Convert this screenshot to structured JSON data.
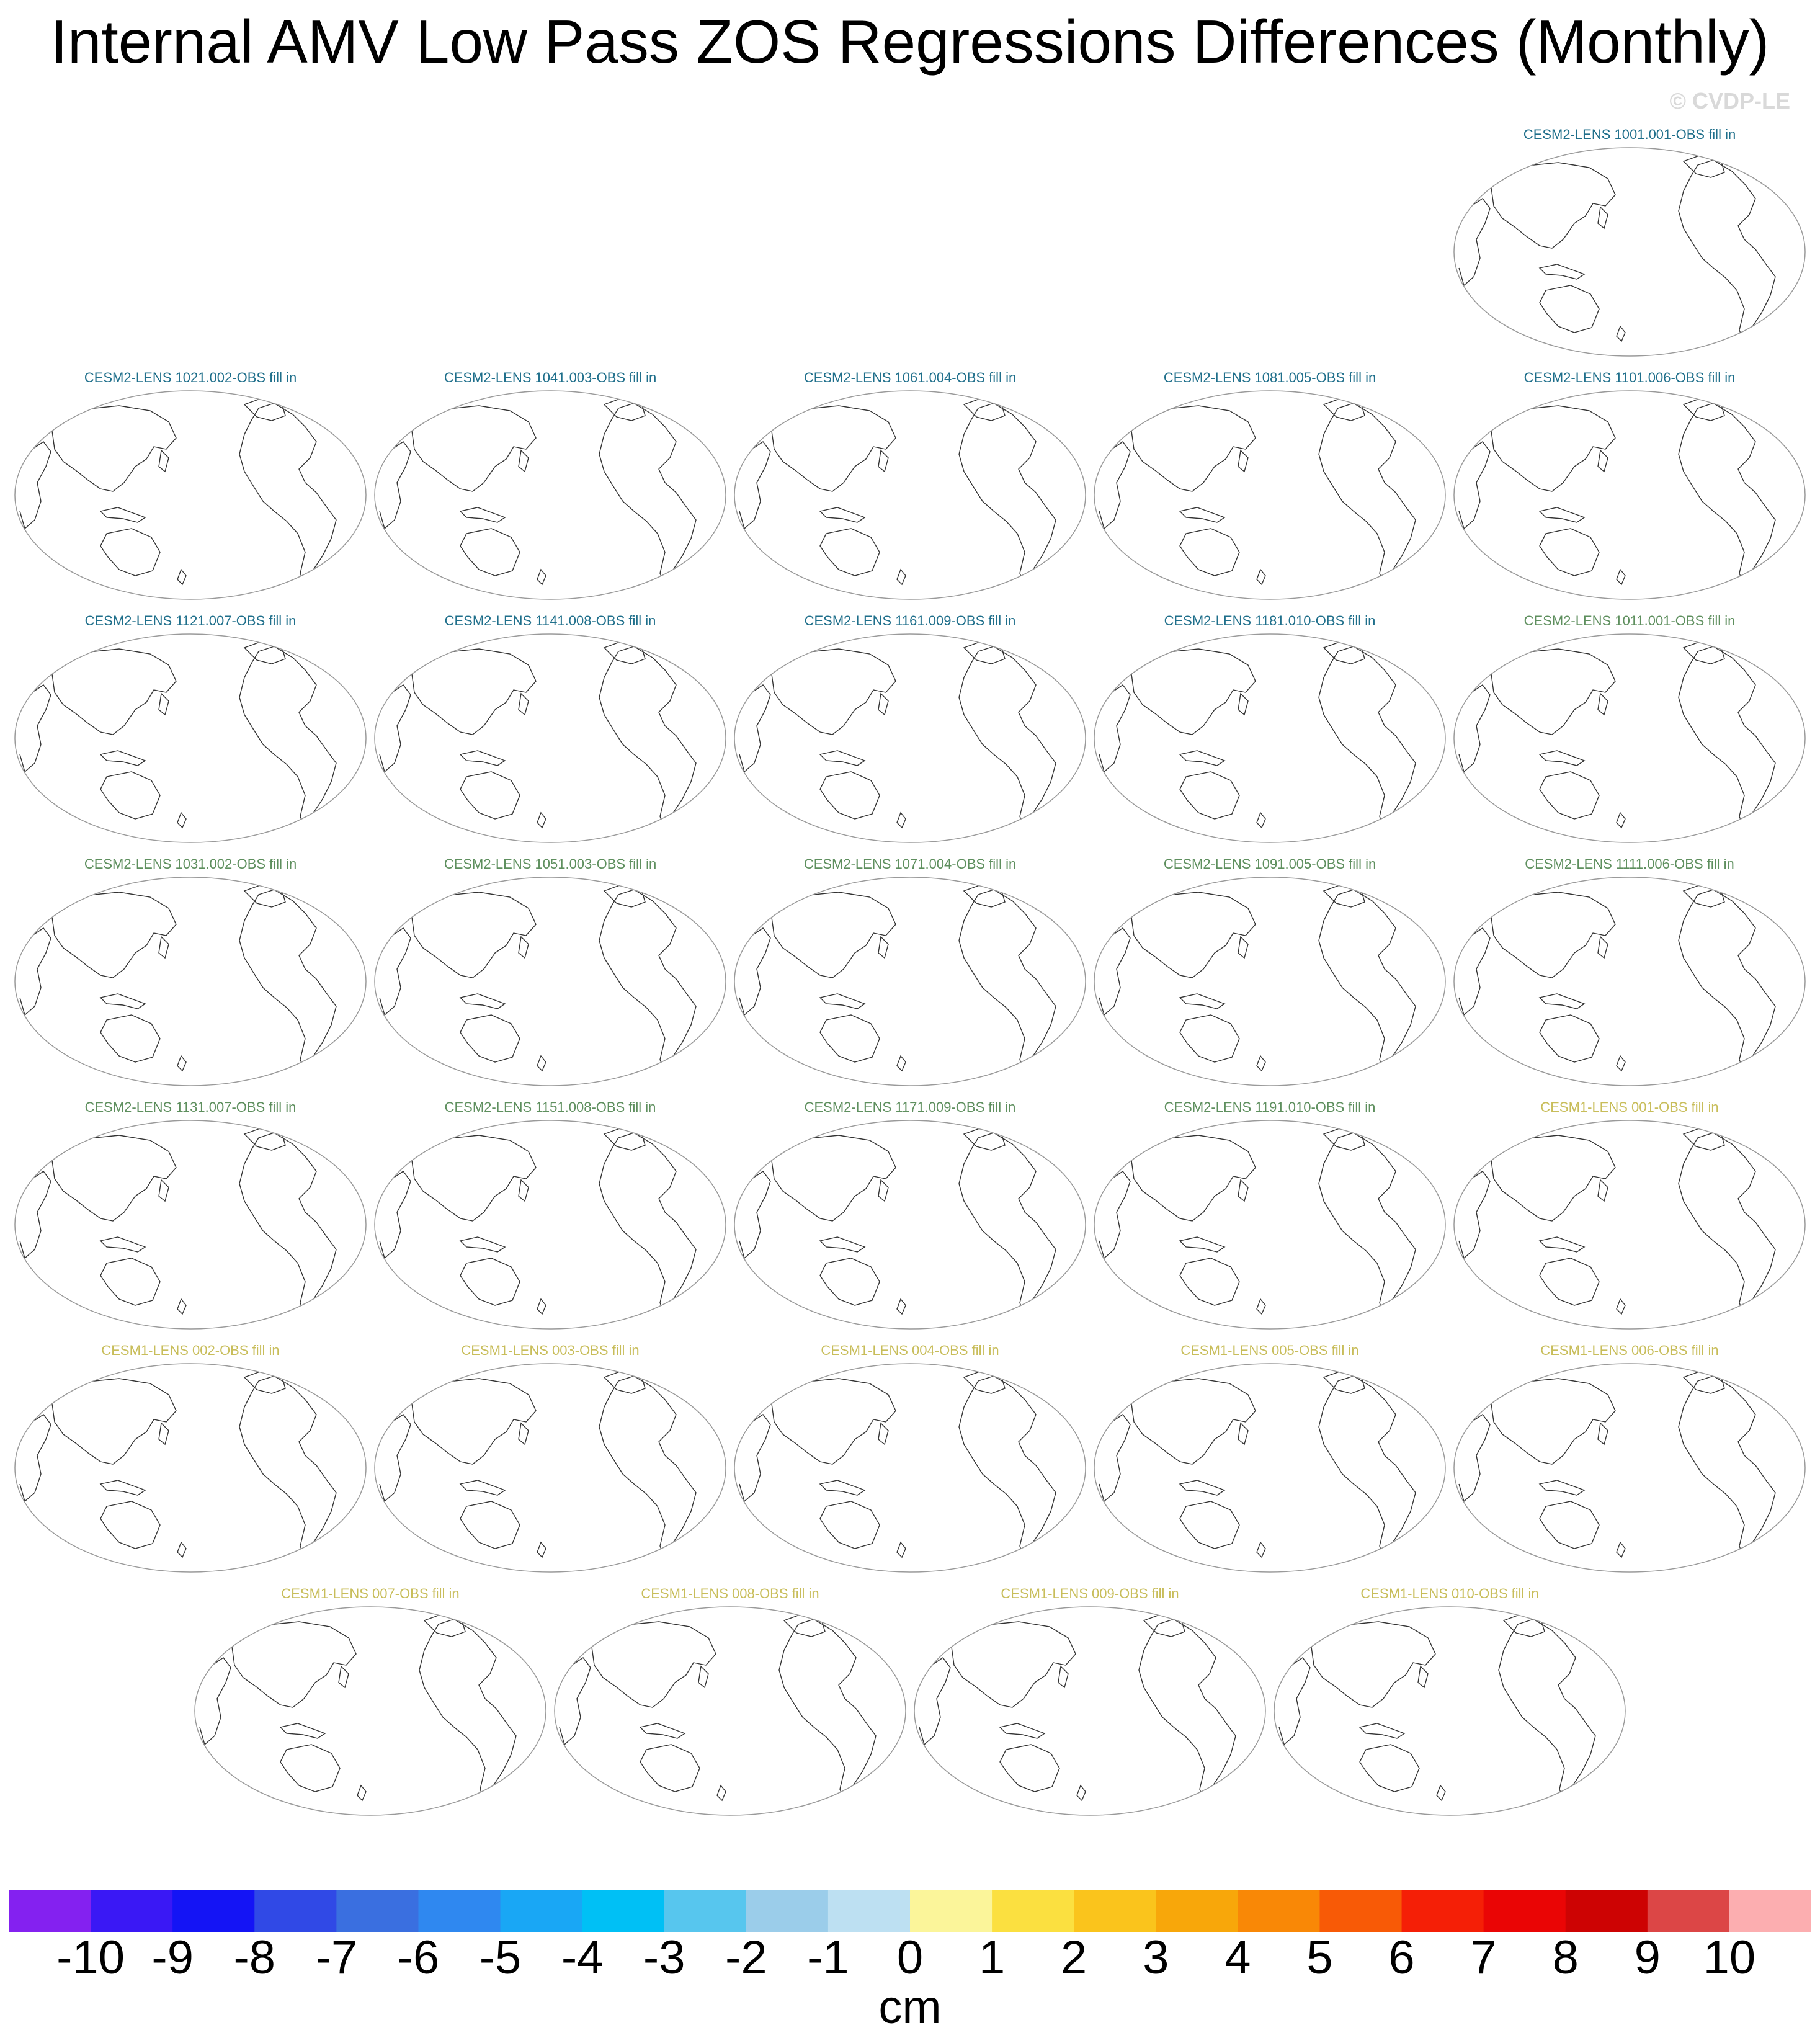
{
  "title": "Internal AMV Low Pass ZOS Regressions Differences (Monthly)",
  "watermark": "© CVDP-LE",
  "colors": {
    "cesm2_a": "#1f6f8b",
    "cesm2_b": "#5e8f5e",
    "cesm1": "#c8bd5a",
    "coast": "#333333",
    "outline": "#9a9a9a"
  },
  "panels": [
    {
      "title": "CESM2-LENS 1001.001-OBS fill in",
      "group": "cesm2_a"
    },
    {
      "title": "CESM2-LENS 1021.002-OBS fill in",
      "group": "cesm2_a"
    },
    {
      "title": "CESM2-LENS 1041.003-OBS fill in",
      "group": "cesm2_a"
    },
    {
      "title": "CESM2-LENS 1061.004-OBS fill in",
      "group": "cesm2_a"
    },
    {
      "title": "CESM2-LENS 1081.005-OBS fill in",
      "group": "cesm2_a"
    },
    {
      "title": "CESM2-LENS 1101.006-OBS fill in",
      "group": "cesm2_a"
    },
    {
      "title": "CESM2-LENS 1121.007-OBS fill in",
      "group": "cesm2_a"
    },
    {
      "title": "CESM2-LENS 1141.008-OBS fill in",
      "group": "cesm2_a"
    },
    {
      "title": "CESM2-LENS 1161.009-OBS fill in",
      "group": "cesm2_a"
    },
    {
      "title": "CESM2-LENS 1181.010-OBS fill in",
      "group": "cesm2_a"
    },
    {
      "title": "CESM2-LENS 1011.001-OBS fill in",
      "group": "cesm2_b"
    },
    {
      "title": "CESM2-LENS 1031.002-OBS fill in",
      "group": "cesm2_b"
    },
    {
      "title": "CESM2-LENS 1051.003-OBS fill in",
      "group": "cesm2_b"
    },
    {
      "title": "CESM2-LENS 1071.004-OBS fill in",
      "group": "cesm2_b"
    },
    {
      "title": "CESM2-LENS 1091.005-OBS fill in",
      "group": "cesm2_b"
    },
    {
      "title": "CESM2-LENS 1111.006-OBS fill in",
      "group": "cesm2_b"
    },
    {
      "title": "CESM2-LENS 1131.007-OBS fill in",
      "group": "cesm2_b"
    },
    {
      "title": "CESM2-LENS 1151.008-OBS fill in",
      "group": "cesm2_b"
    },
    {
      "title": "CESM2-LENS 1171.009-OBS fill in",
      "group": "cesm2_b"
    },
    {
      "title": "CESM2-LENS 1191.010-OBS fill in",
      "group": "cesm2_b"
    },
    {
      "title": "CESM1-LENS 001-OBS fill in",
      "group": "cesm1"
    },
    {
      "title": "CESM1-LENS 002-OBS fill in",
      "group": "cesm1"
    },
    {
      "title": "CESM1-LENS 003-OBS fill in",
      "group": "cesm1"
    },
    {
      "title": "CESM1-LENS 004-OBS fill in",
      "group": "cesm1"
    },
    {
      "title": "CESM1-LENS 005-OBS fill in",
      "group": "cesm1"
    },
    {
      "title": "CESM1-LENS 006-OBS fill in",
      "group": "cesm1"
    },
    {
      "title": "CESM1-LENS 007-OBS fill in",
      "group": "cesm1"
    },
    {
      "title": "CESM1-LENS 008-OBS fill in",
      "group": "cesm1"
    },
    {
      "title": "CESM1-LENS 009-OBS fill in",
      "group": "cesm1"
    },
    {
      "title": "CESM1-LENS 010-OBS fill in",
      "group": "cesm1"
    }
  ],
  "colorbar": {
    "units": "cm",
    "labels": [
      "-10",
      "-9",
      "-8",
      "-7",
      "-6",
      "-5",
      "-4",
      "-3",
      "-2",
      "-1",
      "0",
      "1",
      "2",
      "3",
      "4",
      "5",
      "6",
      "7",
      "8",
      "9",
      "10"
    ],
    "colors": [
      "#8421f0",
      "#3a18f5",
      "#1414f5",
      "#3049e6",
      "#3a6fe0",
      "#2f88f0",
      "#19a7f5",
      "#00c0f5",
      "#57c6ee",
      "#9bcdea",
      "#bde0f2",
      "#fbf59a",
      "#fbe040",
      "#fac41c",
      "#f8a70a",
      "#f98806",
      "#f85a06",
      "#f51f06",
      "#ea0505",
      "#cd0303",
      "#dc4646",
      "#fcaeb0"
    ]
  }
}
